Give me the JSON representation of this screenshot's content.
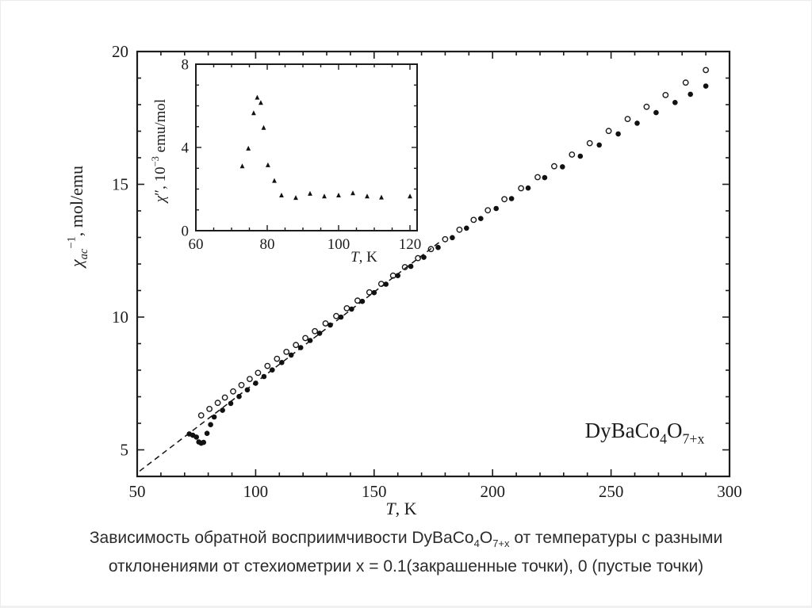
{
  "page": {
    "background": "#ffffff",
    "border_color": "#ececec",
    "ink_color": "#1c1c1c",
    "marker_color": "#111111"
  },
  "caption": {
    "line1": "Зависимость обратной восприимчивости DyBaCo_{4}O_{7+x} от температуры с разными",
    "line2": "отклонениями от стехиометрии x = 0.1(закрашенные точки), 0 (пустые точки)"
  },
  "chart_data": [
    {
      "id": "main",
      "type": "scatter",
      "title": "",
      "xlabel": "*T*, K",
      "ylabel": "*χ*_{*ac*}^{−1}, mol/emu",
      "annotation": "DyBaCo_{4}O_{7+x}",
      "xlim": [
        50,
        300
      ],
      "ylim": [
        4,
        20
      ],
      "x_major_ticks": [
        50,
        100,
        150,
        200,
        250,
        300
      ],
      "x_minor_step": 10,
      "y_major_ticks": [
        5,
        10,
        15,
        20
      ],
      "y_minor_step": 1,
      "grid": false,
      "legend": "none",
      "mirror_ticks": true,
      "series": [
        {
          "name": "x = 0 (пустые точки)",
          "marker": "open-circle",
          "color": "#1a1a1a",
          "points": [
            [
              77,
              6.3
            ],
            [
              80.5,
              6.54
            ],
            [
              84,
              6.77
            ],
            [
              87,
              6.97
            ],
            [
              90.5,
              7.2
            ],
            [
              94,
              7.44
            ],
            [
              97.5,
              7.67
            ],
            [
              101,
              7.9
            ],
            [
              105,
              8.16
            ],
            [
              109,
              8.43
            ],
            [
              113,
              8.69
            ],
            [
              117,
              8.95
            ],
            [
              121,
              9.21
            ],
            [
              125,
              9.47
            ],
            [
              129.5,
              9.76
            ],
            [
              134,
              10.04
            ],
            [
              138.5,
              10.33
            ],
            [
              143,
              10.62
            ],
            [
              148,
              10.93
            ],
            [
              153,
              11.25
            ],
            [
              158,
              11.56
            ],
            [
              163,
              11.88
            ],
            [
              168.5,
              12.22
            ],
            [
              174,
              12.56
            ],
            [
              180,
              12.93
            ],
            [
              186,
              13.29
            ],
            [
              192,
              13.66
            ],
            [
              198,
              14.02
            ],
            [
              205,
              14.44
            ],
            [
              212,
              14.85
            ],
            [
              219,
              15.27
            ],
            [
              226,
              15.68
            ],
            [
              233.5,
              16.12
            ],
            [
              241,
              16.55
            ],
            [
              249,
              17.01
            ],
            [
              257,
              17.46
            ],
            [
              265,
              17.92
            ],
            [
              273,
              18.36
            ],
            [
              281.5,
              18.83
            ],
            [
              290,
              19.3
            ]
          ]
        },
        {
          "name": "x = 0.1 (закрашенные точки)",
          "marker": "filled-circle",
          "color": "#111111",
          "points": [
            [
              72,
              5.6
            ],
            [
              73.5,
              5.55
            ],
            [
              75,
              5.48
            ],
            [
              76,
              5.3
            ],
            [
              77,
              5.25
            ],
            [
              78,
              5.28
            ],
            [
              79.5,
              5.62
            ],
            [
              81,
              5.95
            ],
            [
              82.5,
              6.24
            ],
            [
              86,
              6.49
            ],
            [
              89.5,
              6.75
            ],
            [
              93,
              7.01
            ],
            [
              96.5,
              7.26
            ],
            [
              100,
              7.51
            ],
            [
              103.5,
              7.76
            ],
            [
              107,
              8.01
            ],
            [
              111,
              8.29
            ],
            [
              115,
              8.57
            ],
            [
              119,
              8.85
            ],
            [
              123,
              9.12
            ],
            [
              127,
              9.39
            ],
            [
              131.5,
              9.7
            ],
            [
              136,
              10.0
            ],
            [
              140.5,
              10.3
            ],
            [
              145,
              10.59
            ],
            [
              150,
              10.92
            ],
            [
              155,
              11.24
            ],
            [
              160,
              11.56
            ],
            [
              165.5,
              11.91
            ],
            [
              171,
              12.25
            ],
            [
              177,
              12.62
            ],
            [
              183,
              12.99
            ],
            [
              189,
              13.35
            ],
            [
              195,
              13.71
            ],
            [
              201.5,
              14.09
            ],
            [
              208,
              14.46
            ],
            [
              215,
              14.86
            ],
            [
              222,
              15.25
            ],
            [
              229.5,
              15.66
            ],
            [
              237,
              16.06
            ],
            [
              245,
              16.48
            ],
            [
              253,
              16.9
            ],
            [
              261,
              17.3
            ],
            [
              269,
              17.7
            ],
            [
              277,
              18.08
            ],
            [
              283.5,
              18.39
            ],
            [
              290,
              18.7
            ]
          ]
        },
        {
          "name": "линейная экстраполяция (штриховая линия)",
          "marker": "none",
          "line": "dashed",
          "color": "#111111",
          "points": [
            [
              51,
              4.2
            ],
            [
              178,
              12.85
            ]
          ]
        }
      ]
    },
    {
      "id": "inset",
      "type": "scatter",
      "title": "",
      "xlabel": "*T*, K",
      "ylabel": "*χ*″, 10^{−3} emu/mol",
      "xlim": [
        60,
        122
      ],
      "ylim": [
        0,
        8
      ],
      "x_major_ticks": [
        60,
        80,
        100,
        120
      ],
      "x_minor_step": 5,
      "y_major_ticks": [
        0,
        4,
        8
      ],
      "y_minor_step": 1,
      "grid": false,
      "legend": "none",
      "mirror_ticks": true,
      "series": [
        {
          "name": "χ″(T), x = 0.1",
          "marker": "filled-triangle",
          "color": "#111111",
          "points": [
            [
              73,
              3.1
            ],
            [
              74.7,
              3.95
            ],
            [
              76.2,
              5.65
            ],
            [
              77.2,
              6.4
            ],
            [
              78.2,
              6.15
            ],
            [
              79,
              4.95
            ],
            [
              80.2,
              3.15
            ],
            [
              82,
              2.4
            ],
            [
              84,
              1.7
            ],
            [
              88,
              1.58
            ],
            [
              92,
              1.78
            ],
            [
              96,
              1.65
            ],
            [
              100,
              1.7
            ],
            [
              104,
              1.8
            ],
            [
              108,
              1.65
            ],
            [
              112,
              1.6
            ],
            [
              120,
              1.65
            ]
          ]
        }
      ]
    }
  ]
}
